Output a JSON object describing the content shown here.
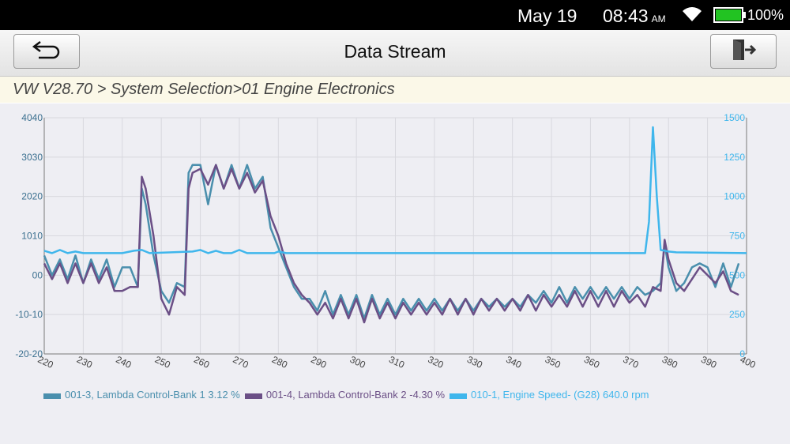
{
  "status": {
    "date": "May 19",
    "time": "08:43",
    "ampm": "AM",
    "battery": "100%",
    "icons": [
      "wifi-icon",
      "battery-icon"
    ]
  },
  "header": {
    "title": "Data Stream",
    "back_icon": "back-arrow-icon",
    "exit_icon": "exit-door-icon"
  },
  "breadcrumb": "VW V28.70 > System Selection>01 Engine Electronics",
  "colors": {
    "series1": "#4a8fad",
    "series2": "#6b4f86",
    "series3": "#3fb6ec",
    "axis": "#7a7a7a"
  },
  "chart_data": {
    "type": "line",
    "x_range": [
      220,
      400
    ],
    "x_ticks": [
      220,
      230,
      240,
      250,
      260,
      270,
      280,
      290,
      300,
      310,
      320,
      330,
      340,
      350,
      360,
      370,
      380,
      390,
      400
    ],
    "left_axis": {
      "ylim": [
        -20,
        40
      ],
      "ticks": [
        "-20-20",
        "-10-10",
        "00",
        "1010",
        "2020",
        "3030",
        "4040"
      ],
      "tick_values": [
        -20,
        -10,
        0,
        10,
        20,
        30,
        40
      ]
    },
    "right_axis": {
      "ylim": [
        0,
        1500
      ],
      "ticks": [
        "0",
        "250",
        "500",
        "750",
        "1000",
        "1250",
        "1500"
      ],
      "tick_values": [
        0,
        250,
        500,
        750,
        1000,
        1250,
        1500
      ]
    },
    "grid": true,
    "legend_position": "bottom-left",
    "series": [
      {
        "name": "001-3, Lambda Control-Bank 1 3.12 %",
        "axis": "left",
        "x": [
          220,
          222,
          224,
          226,
          228,
          230,
          232,
          234,
          236,
          238,
          240,
          242,
          244,
          245,
          246,
          248,
          250,
          252,
          254,
          256,
          257,
          258,
          260,
          262,
          264,
          266,
          268,
          270,
          272,
          274,
          276,
          278,
          280,
          282,
          284,
          286,
          288,
          290,
          292,
          294,
          296,
          298,
          300,
          302,
          304,
          306,
          308,
          310,
          312,
          314,
          316,
          318,
          320,
          322,
          324,
          326,
          328,
          330,
          332,
          334,
          336,
          338,
          340,
          342,
          344,
          346,
          348,
          350,
          352,
          354,
          356,
          358,
          360,
          362,
          364,
          366,
          368,
          370,
          372,
          374,
          376,
          378,
          379,
          380,
          382,
          384,
          386,
          388,
          390,
          392,
          394,
          396,
          398
        ],
        "y": [
          5,
          0,
          4,
          -1,
          5,
          -2,
          4,
          -1,
          4,
          -3,
          2,
          2,
          -3,
          22,
          18,
          5,
          -4,
          -7,
          -2,
          -3,
          26,
          28,
          28,
          18,
          28,
          22,
          28,
          22,
          28,
          22,
          25,
          12,
          7,
          2,
          -3,
          -6,
          -6,
          -9,
          -4,
          -10,
          -5,
          -10,
          -5,
          -11,
          -5,
          -10,
          -6,
          -10,
          -6,
          -9,
          -6,
          -9,
          -6,
          -9,
          -6,
          -9,
          -6,
          -9,
          -6,
          -8,
          -6,
          -8,
          -6,
          -8,
          -5,
          -7,
          -4,
          -7,
          -3,
          -7,
          -3,
          -6,
          -3,
          -6,
          -3,
          -6,
          -3,
          -6,
          -3,
          -5,
          -4,
          -2,
          8,
          2,
          -4,
          -2,
          2,
          3,
          2,
          -3,
          3,
          -3,
          3
        ]
      },
      {
        "name": "001-4, Lambda Control-Bank 2 -4.30 %",
        "axis": "left",
        "x": [
          220,
          222,
          224,
          226,
          228,
          230,
          232,
          234,
          236,
          238,
          240,
          242,
          244,
          245,
          246,
          248,
          250,
          252,
          254,
          256,
          257,
          258,
          260,
          262,
          264,
          266,
          268,
          270,
          272,
          274,
          276,
          278,
          280,
          282,
          284,
          286,
          288,
          290,
          292,
          294,
          296,
          298,
          300,
          302,
          304,
          306,
          308,
          310,
          312,
          314,
          316,
          318,
          320,
          322,
          324,
          326,
          328,
          330,
          332,
          334,
          336,
          338,
          340,
          342,
          344,
          346,
          348,
          350,
          352,
          354,
          356,
          358,
          360,
          362,
          364,
          366,
          368,
          370,
          372,
          374,
          376,
          378,
          379,
          380,
          382,
          384,
          386,
          388,
          390,
          392,
          394,
          396,
          398
        ],
        "y": [
          3,
          -1,
          3,
          -2,
          3,
          -2,
          3,
          -2,
          2,
          -4,
          -4,
          -3,
          -3,
          25,
          22,
          10,
          -6,
          -10,
          -3,
          -5,
          22,
          26,
          27,
          23,
          28,
          22,
          27,
          22,
          26,
          21,
          24,
          15,
          10,
          3,
          -2,
          -5,
          -7,
          -10,
          -7,
          -11,
          -6,
          -11,
          -6,
          -12,
          -6,
          -11,
          -7,
          -11,
          -7,
          -10,
          -7,
          -10,
          -7,
          -10,
          -6,
          -10,
          -6,
          -10,
          -6,
          -9,
          -6,
          -9,
          -6,
          -9,
          -5,
          -9,
          -5,
          -8,
          -5,
          -8,
          -4,
          -8,
          -4,
          -8,
          -4,
          -8,
          -4,
          -7,
          -5,
          -8,
          -3,
          -4,
          9,
          4,
          -2,
          -4,
          -1,
          2,
          0,
          -2,
          1,
          -4,
          -5
        ]
      },
      {
        "name": "010-1, Engine Speed- (G28) 640.0 rpm",
        "axis": "right",
        "x": [
          220,
          222,
          224,
          226,
          228,
          230,
          240,
          243,
          245,
          247,
          258,
          260,
          262,
          264,
          266,
          268,
          270,
          272,
          279,
          280,
          282,
          300,
          330,
          360,
          374,
          375,
          376,
          377,
          378,
          380,
          382,
          400
        ],
        "y": [
          655,
          640,
          660,
          640,
          650,
          640,
          640,
          655,
          660,
          640,
          650,
          660,
          640,
          655,
          640,
          640,
          660,
          640,
          640,
          650,
          640,
          640,
          640,
          640,
          640,
          840,
          1440,
          1000,
          660,
          650,
          645,
          640
        ]
      }
    ]
  }
}
